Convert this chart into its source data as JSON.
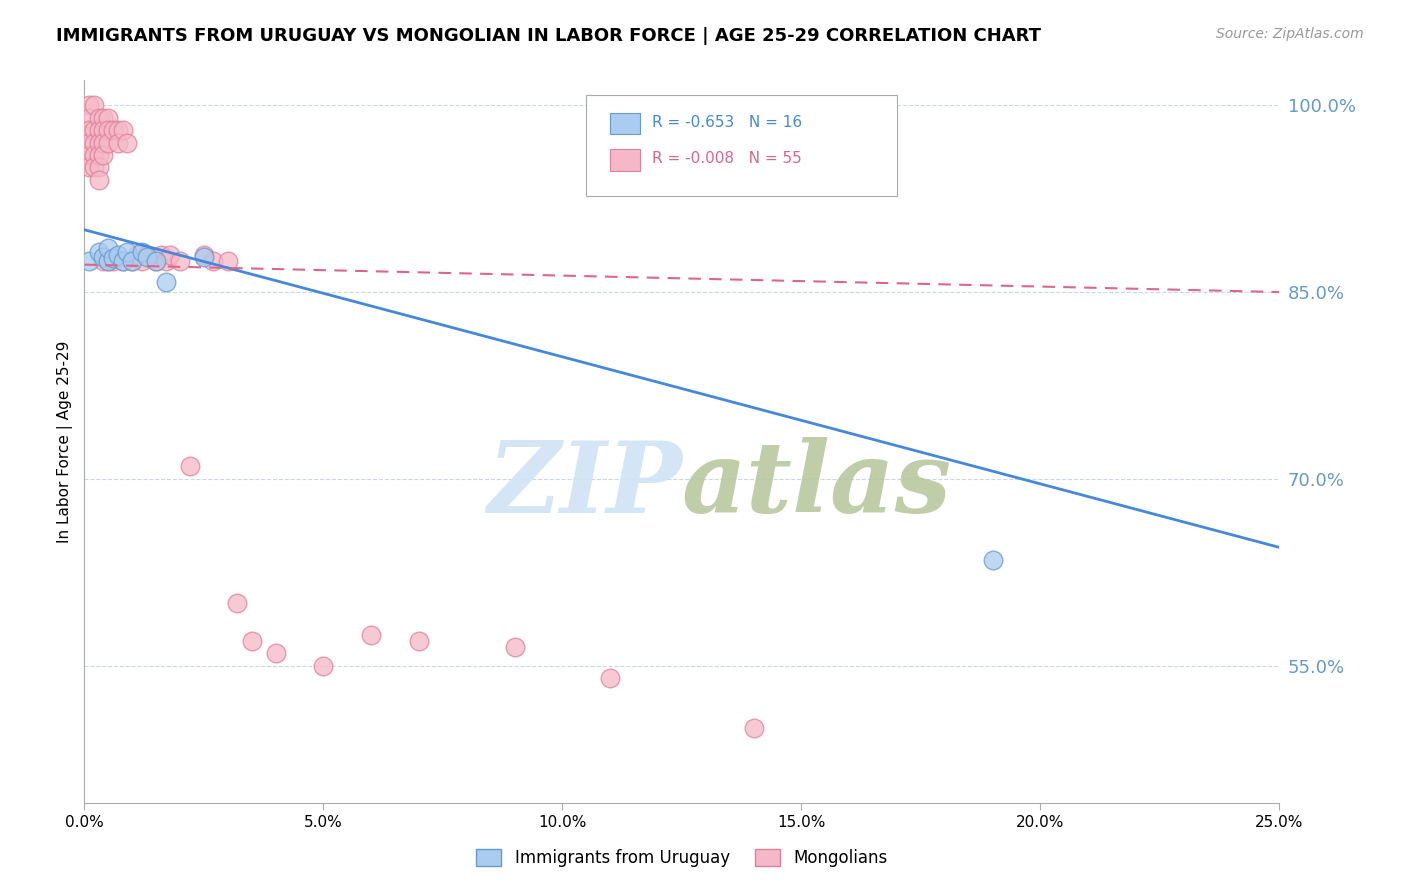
{
  "title": "IMMIGRANTS FROM URUGUAY VS MONGOLIAN IN LABOR FORCE | AGE 25-29 CORRELATION CHART",
  "source": "Source: ZipAtlas.com",
  "ylabel": "In Labor Force | Age 25-29",
  "xlim": [
    0.0,
    0.25
  ],
  "ylim": [
    0.44,
    1.02
  ],
  "legend_blue_r": "-0.653",
  "legend_blue_n": "16",
  "legend_pink_r": "-0.008",
  "legend_pink_n": "55",
  "legend_label_blue": "Immigrants from Uruguay",
  "legend_label_pink": "Mongolians",
  "blue_scatter_color": "#aaccf0",
  "blue_edge_color": "#6699cc",
  "pink_scatter_color": "#f5b8c8",
  "pink_edge_color": "#e08098",
  "blue_line_color": "#4488dd",
  "pink_line_color": "#dd6688",
  "grid_color": "#c8d8e8",
  "grid_dash_color": "#d8c8d0",
  "ytick_color": "#6699cc",
  "background_color": "#ffffff",
  "watermark_color": "#d0e4f5",
  "uruguay_x": [
    0.001,
    0.003,
    0.004,
    0.005,
    0.005,
    0.006,
    0.007,
    0.008,
    0.009,
    0.01,
    0.012,
    0.013,
    0.015,
    0.017,
    0.025,
    0.19
  ],
  "uruguay_y": [
    0.875,
    0.882,
    0.878,
    0.875,
    0.885,
    0.877,
    0.88,
    0.875,
    0.882,
    0.875,
    0.882,
    0.878,
    0.875,
    0.858,
    0.878,
    0.635
  ],
  "mongolian_x": [
    0.001,
    0.001,
    0.001,
    0.001,
    0.001,
    0.001,
    0.002,
    0.002,
    0.002,
    0.002,
    0.002,
    0.003,
    0.003,
    0.003,
    0.003,
    0.003,
    0.003,
    0.004,
    0.004,
    0.004,
    0.004,
    0.004,
    0.005,
    0.005,
    0.005,
    0.005,
    0.006,
    0.006,
    0.007,
    0.007,
    0.008,
    0.008,
    0.009,
    0.01,
    0.011,
    0.012,
    0.013,
    0.015,
    0.016,
    0.017,
    0.018,
    0.02,
    0.022,
    0.025,
    0.027,
    0.03,
    0.032,
    0.035,
    0.04,
    0.05,
    0.06,
    0.07,
    0.09,
    0.11,
    0.14
  ],
  "mongolian_y": [
    1.0,
    0.99,
    0.98,
    0.97,
    0.96,
    0.95,
    1.0,
    0.98,
    0.97,
    0.96,
    0.95,
    0.99,
    0.98,
    0.97,
    0.96,
    0.95,
    0.94,
    0.99,
    0.98,
    0.97,
    0.96,
    0.875,
    0.99,
    0.98,
    0.97,
    0.875,
    0.98,
    0.875,
    0.98,
    0.97,
    0.98,
    0.875,
    0.97,
    0.875,
    0.88,
    0.875,
    0.88,
    0.875,
    0.88,
    0.875,
    0.88,
    0.875,
    0.71,
    0.88,
    0.875,
    0.875,
    0.6,
    0.57,
    0.56,
    0.55,
    0.575,
    0.57,
    0.565,
    0.54,
    0.5
  ],
  "blue_trend_x": [
    0.0,
    0.25
  ],
  "blue_trend_y": [
    0.9,
    0.645
  ],
  "pink_trend_x": [
    0.0,
    0.25
  ],
  "pink_trend_y": [
    0.872,
    0.85
  ]
}
